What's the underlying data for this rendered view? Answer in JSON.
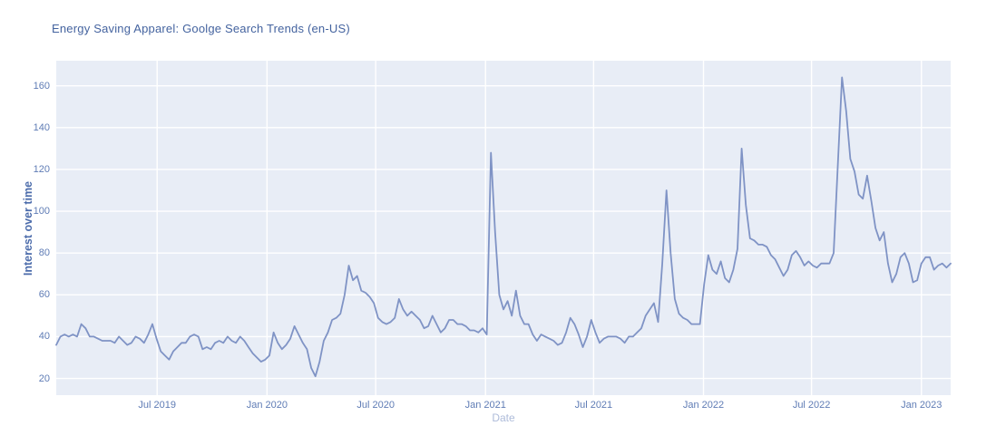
{
  "chart": {
    "title": "Energy Saving Apparel: Goolge Search Trends (en-US)",
    "xlabel": "Date",
    "ylabel": "Interest over time"
  },
  "chart_data": {
    "type": "line",
    "title": "Energy Saving Apparel: Goolge Search Trends (en-US)",
    "xlabel": "Date",
    "ylabel": "Interest over time",
    "legend": "none",
    "grid": "on",
    "x_start_date": "2019-01-13",
    "x_step_days": 7,
    "ylim": [
      12,
      172
    ],
    "y_ticks": [
      20,
      40,
      60,
      80,
      100,
      120,
      140,
      160
    ],
    "x_ticks": [
      {
        "label": "Jul 2019",
        "week": 24.14
      },
      {
        "label": "Jan 2020",
        "week": 50.43
      },
      {
        "label": "Jul 2020",
        "week": 76.43
      },
      {
        "label": "Jan 2021",
        "week": 102.71
      },
      {
        "label": "Jul 2021",
        "week": 128.57
      },
      {
        "label": "Jan 2022",
        "week": 154.86
      },
      {
        "label": "Jul 2022",
        "week": 180.71
      },
      {
        "label": "Jan 2023",
        "week": 207.0
      }
    ],
    "values": [
      36,
      40,
      41,
      40,
      41,
      40,
      46,
      44,
      40,
      40,
      39,
      38,
      38,
      38,
      37,
      40,
      38,
      36,
      37,
      40,
      39,
      37,
      41,
      46,
      39,
      33,
      31,
      29,
      33,
      35,
      37,
      37,
      40,
      41,
      40,
      34,
      35,
      34,
      37,
      38,
      37,
      40,
      38,
      37,
      40,
      38,
      35,
      32,
      30,
      28,
      29,
      31,
      42,
      37,
      34,
      36,
      39,
      45,
      41,
      37,
      34,
      25,
      21,
      28,
      38,
      42,
      48,
      49,
      51,
      60,
      74,
      67,
      69,
      62,
      61,
      59,
      56,
      49,
      47,
      46,
      47,
      49,
      58,
      53,
      50,
      52,
      50,
      48,
      44,
      45,
      50,
      46,
      42,
      44,
      48,
      48,
      46,
      46,
      45,
      43,
      43,
      42,
      44,
      41,
      128,
      90,
      60,
      53,
      57,
      50,
      62,
      50,
      46,
      46,
      41,
      38,
      41,
      40,
      39,
      38,
      36,
      37,
      42,
      49,
      46,
      41,
      35,
      40,
      48,
      42,
      37,
      39,
      40,
      40,
      40,
      39,
      37,
      40,
      40,
      42,
      44,
      50,
      53,
      56,
      47,
      75,
      110,
      80,
      58,
      51,
      49,
      48,
      46,
      46,
      46,
      65,
      79,
      72,
      70,
      76,
      68,
      66,
      72,
      82,
      130,
      103,
      87,
      86,
      84,
      84,
      83,
      79,
      77,
      73,
      69,
      72,
      79,
      81,
      78,
      74,
      76,
      74,
      73,
      75,
      75,
      75,
      80,
      122,
      164,
      148,
      125,
      119,
      108,
      106,
      117,
      105,
      92,
      86,
      90,
      75,
      66,
      70,
      78,
      80,
      75,
      66,
      67,
      75,
      78,
      78,
      72,
      74,
      75,
      73,
      75
    ],
    "colors": {
      "line": "#7f93c5",
      "plot_background": "#e8edf6",
      "grid": "#ffffff",
      "title_text": "#44639f",
      "tick_text": "#5f7cb5"
    }
  }
}
